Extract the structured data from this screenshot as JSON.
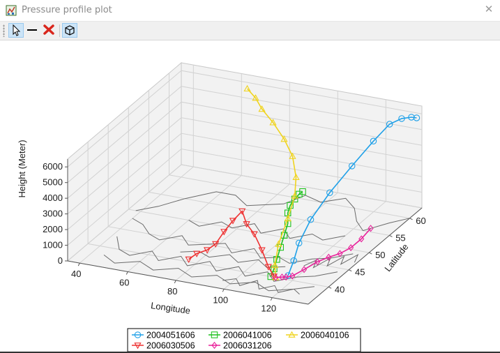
{
  "window": {
    "title": "Pressure profile plot",
    "close_label": "✕"
  },
  "toolbar": {
    "items": [
      {
        "name": "select-pointer-button",
        "icon": "cursor-arrow-icon",
        "active": true
      },
      {
        "name": "line-tool-button",
        "icon": "line-icon",
        "active": false
      },
      {
        "name": "delete-button",
        "icon": "red-x-icon",
        "active": false
      },
      {
        "name": "3d-view-button",
        "icon": "cube-icon",
        "active": true
      }
    ]
  },
  "chart_data": {
    "type": "line",
    "projection": "3d",
    "title": "",
    "xlabel": "Longitude",
    "ylabel": "Latitude",
    "zlabel": "Height (Meter)",
    "xlim": [
      35,
      135
    ],
    "ylim": [
      35,
      63
    ],
    "zlim": [
      0,
      6500
    ],
    "xticks": [
      40,
      60,
      80,
      100,
      120
    ],
    "yticks": [
      40,
      45,
      50,
      55,
      60
    ],
    "zticks": [
      0,
      1000,
      2000,
      3000,
      4000,
      5000,
      6000
    ],
    "grid": true,
    "basemap": "coastlines",
    "legend": {
      "position": "bottom",
      "columns": 3
    },
    "series": [
      {
        "name": "2004051606",
        "color": "#1fa0e8",
        "marker": "circle",
        "points": [
          [
            116.5,
            41.0,
            0
          ],
          [
            117.5,
            41.8,
            800
          ],
          [
            118.5,
            42.5,
            1800
          ],
          [
            120.0,
            44.5,
            2900
          ],
          [
            122.0,
            48.0,
            3900
          ],
          [
            124.5,
            52.0,
            4800
          ],
          [
            127.5,
            55.5,
            5700
          ],
          [
            130.0,
            58.0,
            6300
          ],
          [
            132.5,
            59.5,
            6400
          ],
          [
            134.0,
            61.0,
            6200
          ],
          [
            134.5,
            62.0,
            5950
          ]
        ]
      },
      {
        "name": "2006041006",
        "color": "#1fc21f",
        "marker": "square",
        "points": [
          [
            111.0,
            40.0,
            0
          ],
          [
            111.5,
            40.5,
            400
          ],
          [
            111.8,
            41.0,
            900
          ],
          [
            112.0,
            41.8,
            1500
          ],
          [
            112.2,
            42.6,
            2100
          ],
          [
            112.5,
            43.3,
            2700
          ],
          [
            112.0,
            43.6,
            3300
          ],
          [
            112.3,
            44.0,
            3700
          ],
          [
            113.2,
            44.6,
            4000
          ],
          [
            114.0,
            45.2,
            4200
          ],
          [
            114.8,
            45.6,
            4300
          ]
        ]
      },
      {
        "name": "2006040106",
        "color": "#f0d41f",
        "marker": "triangle",
        "points": [
          [
            113.0,
            40.0,
            0
          ],
          [
            111.0,
            41.0,
            500
          ],
          [
            110.0,
            42.5,
            1500
          ],
          [
            110.5,
            44.5,
            2700
          ],
          [
            110.0,
            46.5,
            3700
          ],
          [
            108.0,
            48.0,
            4500
          ],
          [
            104.0,
            49.5,
            5400
          ],
          [
            98.0,
            51.0,
            6000
          ],
          [
            90.0,
            53.0,
            6400
          ],
          [
            82.0,
            55.0,
            6600
          ],
          [
            76.0,
            57.0,
            6700
          ],
          [
            70.0,
            58.5,
            6800
          ]
        ]
      },
      {
        "name": "2006030506",
        "color": "#ee3030",
        "marker": "triangle-down",
        "points": [
          [
            112.0,
            40.2,
            0
          ],
          [
            110.0,
            40.0,
            600
          ],
          [
            108.0,
            39.6,
            1700
          ],
          [
            106.5,
            38.6,
            2900
          ],
          [
            105.5,
            37.3,
            3800
          ],
          [
            104.5,
            36.8,
            4700
          ],
          [
            102.0,
            36.0,
            4200
          ],
          [
            99.0,
            35.6,
            3500
          ],
          [
            96.0,
            35.3,
            2700
          ],
          [
            93.0,
            35.0,
            2300
          ],
          [
            89.0,
            34.8,
            2000
          ],
          [
            86.0,
            34.6,
            1600
          ]
        ]
      },
      {
        "name": "2006031206",
        "color": "#e8209a",
        "marker": "diamond",
        "points": [
          [
            113.0,
            40.0,
            0
          ],
          [
            116.0,
            39.8,
            150
          ],
          [
            118.0,
            39.6,
            250
          ],
          [
            121.0,
            39.4,
            450
          ],
          [
            124.0,
            40.5,
            700
          ],
          [
            127.0,
            42.0,
            950
          ],
          [
            130.0,
            43.0,
            1100
          ],
          [
            133.0,
            44.0,
            1200
          ],
          [
            135.0,
            45.5,
            1300
          ],
          [
            136.0,
            47.5,
            1450
          ],
          [
            136.5,
            49.5,
            1700
          ]
        ]
      }
    ]
  }
}
